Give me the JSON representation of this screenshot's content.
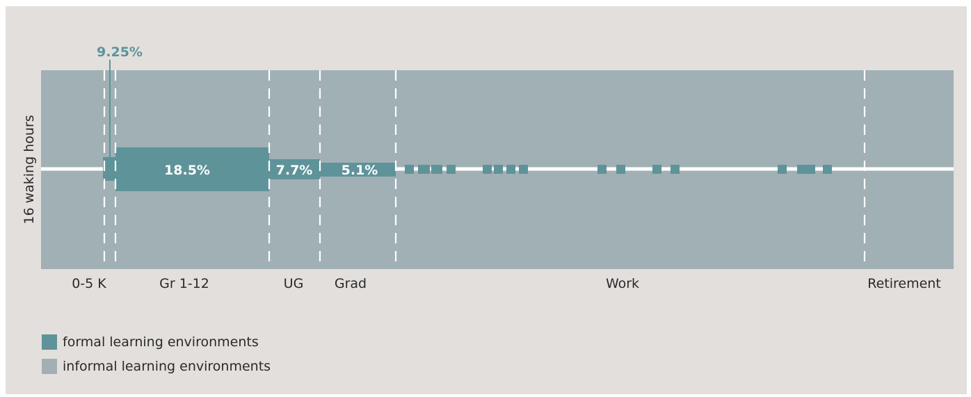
{
  "y_axis_label": "16 waking hours",
  "callout_label": "9.25%",
  "stages": [
    {
      "label": "0-5 K"
    },
    {
      "label": "Gr 1-12"
    },
    {
      "label": "UG"
    },
    {
      "label": "Grad"
    },
    {
      "label": "Work"
    },
    {
      "label": "Retirement"
    }
  ],
  "formal_blocks": [
    {
      "label": "",
      "stage": "0-5 K"
    },
    {
      "label": "18.5%",
      "stage": "Gr 1-12"
    },
    {
      "label": "7.7%",
      "stage": "UG"
    },
    {
      "label": "5.1%",
      "stage": "Grad"
    }
  ],
  "legend": [
    {
      "label": "formal learning environments",
      "color": "#5e9399"
    },
    {
      "label": "informal learning environments",
      "color": "#a1b0b4"
    }
  ],
  "colors": {
    "background": "#e3dfdc",
    "informal": "#a1b0b4",
    "formal": "#5e9399",
    "line": "#ffffff"
  }
}
